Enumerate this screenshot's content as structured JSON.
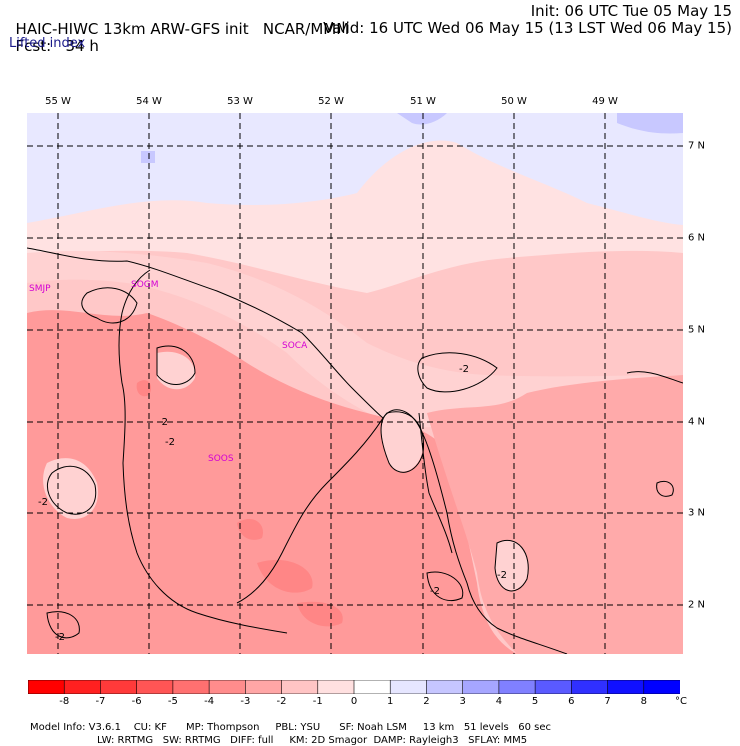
{
  "header": {
    "model": "HAIC-HIWC 13km ARW-GFS init",
    "org": "NCAR/MMM",
    "init": "Init: 06 UTC Tue 05 May 15",
    "fcst_label": "Fcst:",
    "fcst_value": "34 h",
    "valid": "Valid: 16 UTC Wed 06 May 15 (13 LST Wed 06 May 15)"
  },
  "subtitle": "Lifted index",
  "map": {
    "lon_labels": [
      "55 W",
      "54 W",
      "53 W",
      "52 W",
      "51 W",
      "50 W",
      "49 W"
    ],
    "lat_labels": [
      "7 N",
      "6 N",
      "5 N",
      "4 N",
      "3 N",
      "2 N"
    ],
    "stations": [
      "SMJP",
      "SOGM",
      "SOCA",
      "SOOS"
    ],
    "contour_labels": [
      "-2",
      "-2",
      "-2",
      "-2",
      "-2",
      "-2",
      "-2"
    ]
  },
  "colorbar": {
    "ticks": [
      "-8",
      "-7",
      "-6",
      "-5",
      "-4",
      "-3",
      "-2",
      "-1",
      "0",
      "1",
      "2",
      "3",
      "4",
      "5",
      "6",
      "7",
      "8"
    ],
    "unit": "°C",
    "colors": [
      "#ff0000",
      "#ff2020",
      "#ff3a3a",
      "#ff5555",
      "#ff7070",
      "#ff8c8c",
      "#ffa6a6",
      "#ffc4c4",
      "#ffe0e0",
      "#ffffff",
      "#e6e6ff",
      "#c6c6ff",
      "#a6a6ff",
      "#8080ff",
      "#5a5aff",
      "#3030ff",
      "#1010ff",
      "#0000ff"
    ]
  },
  "info": {
    "line1": [
      "Model Info: V3.6.1",
      "CU: KF",
      "MP: Thompson",
      "PBL: YSU",
      "SF: Noah LSM",
      "13 km",
      "51 levels",
      "60 sec"
    ],
    "line2": [
      "LW: RRTMG",
      "SW: RRTMG",
      "DIFF: full",
      "KM: 2D Smagor",
      "DAMP: Rayleigh3",
      "SFLAY: MM5"
    ]
  }
}
